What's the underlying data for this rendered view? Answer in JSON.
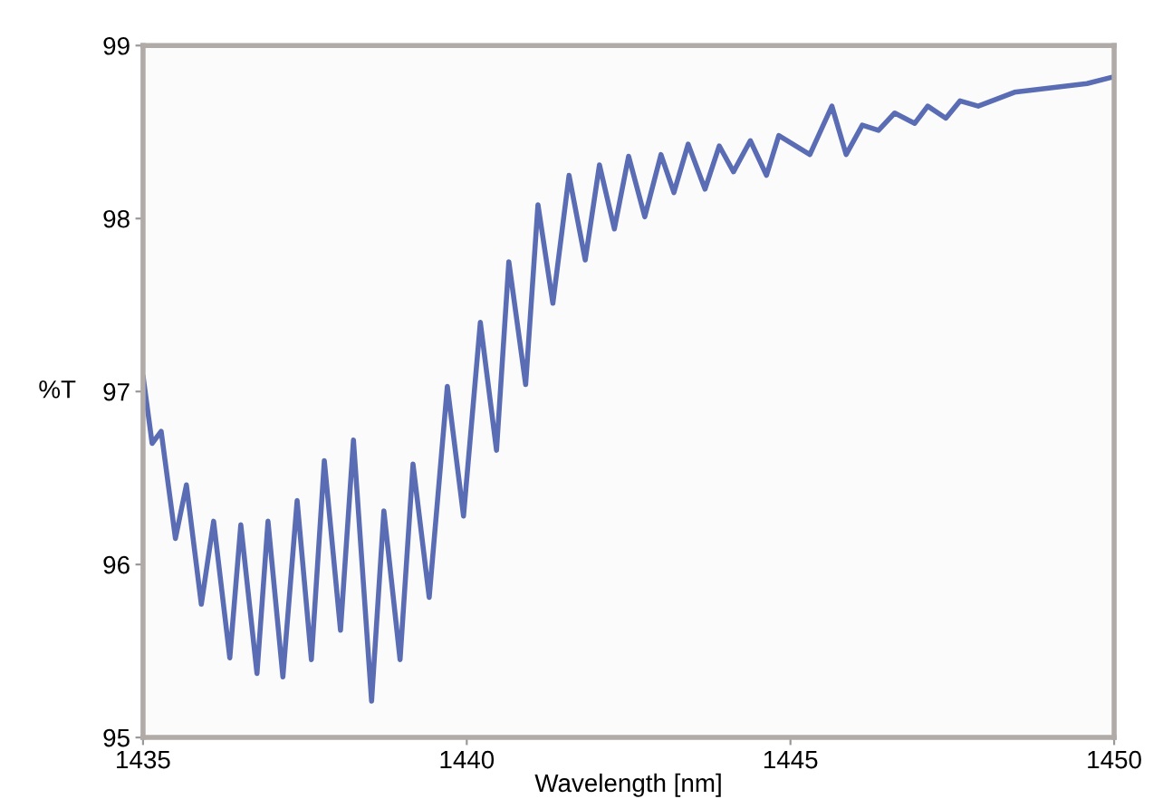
{
  "chart_data": {
    "type": "line",
    "xlabel": "Wavelength [nm]",
    "ylabel": "%T",
    "xlim": [
      1435,
      1450
    ],
    "xticks": [
      1435,
      1440,
      1445,
      1450
    ],
    "ylim": [
      95,
      99
    ],
    "yticks": [
      95,
      96,
      97,
      98,
      99
    ],
    "grid": false,
    "series": [
      {
        "color": "#5a6db4",
        "x": [
          1435.0,
          1435.14,
          1435.28,
          1435.5,
          1435.67,
          1435.9,
          1436.09,
          1436.34,
          1436.51,
          1436.76,
          1436.93,
          1437.16,
          1437.38,
          1437.6,
          1437.8,
          1438.05,
          1438.25,
          1438.53,
          1438.72,
          1438.97,
          1439.17,
          1439.42,
          1439.7,
          1439.95,
          1440.21,
          1440.46,
          1440.65,
          1440.91,
          1441.1,
          1441.33,
          1441.58,
          1441.83,
          1442.05,
          1442.28,
          1442.5,
          1442.75,
          1443.0,
          1443.2,
          1443.42,
          1443.68,
          1443.9,
          1444.12,
          1444.38,
          1444.63,
          1444.82,
          1445.3,
          1445.64,
          1445.86,
          1446.11,
          1446.36,
          1446.61,
          1446.92,
          1447.12,
          1447.4,
          1447.62,
          1447.9,
          1448.46,
          1449.58,
          1450.0
        ],
        "values": [
          97.09,
          96.7,
          96.77,
          96.15,
          96.46,
          95.77,
          96.25,
          95.46,
          96.23,
          95.37,
          96.25,
          95.35,
          96.37,
          95.45,
          96.6,
          95.62,
          96.72,
          95.21,
          96.31,
          95.45,
          96.58,
          95.81,
          97.03,
          96.28,
          97.4,
          96.66,
          97.75,
          97.04,
          98.08,
          97.51,
          98.25,
          97.76,
          98.31,
          97.94,
          98.36,
          98.01,
          98.37,
          98.15,
          98.43,
          98.17,
          98.42,
          98.27,
          98.45,
          98.25,
          98.48,
          98.37,
          98.65,
          98.37,
          98.54,
          98.51,
          98.61,
          98.55,
          98.65,
          98.58,
          98.68,
          98.65,
          98.73,
          98.78,
          98.82
        ]
      }
    ]
  }
}
